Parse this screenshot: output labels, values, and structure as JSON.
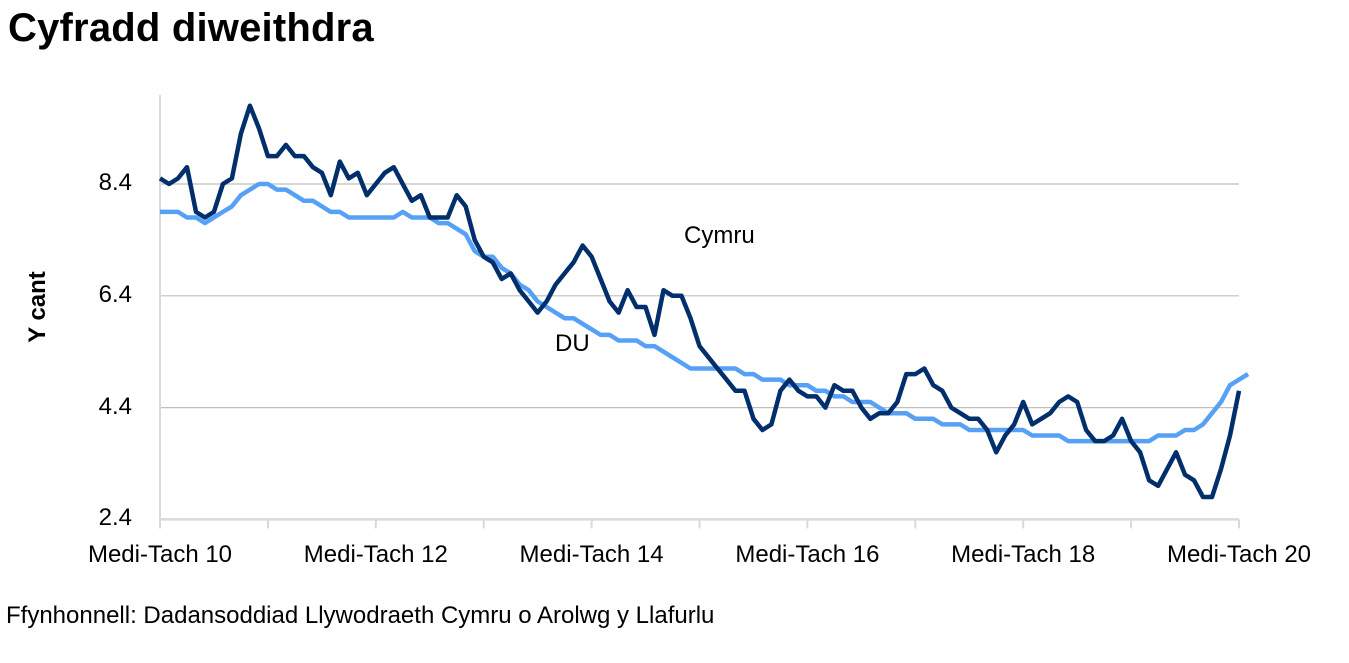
{
  "title": "Cyfradd diweithdra",
  "source": "Ffynhonnell: Dadansoddiad Llywodraeth Cymru o Arolwg y Llafurlu",
  "colors": {
    "cymru": "#002F6C",
    "du": "#56A0F5",
    "grid": "#BFBFBF",
    "axis": "#D9D9D9"
  },
  "chart_data": {
    "type": "line",
    "title": "Cyfradd diweithdra",
    "xlabel": "",
    "ylabel": "Y cant",
    "ylim": [
      2.4,
      10.0
    ],
    "yticks": [
      "2.4",
      "4.4",
      "6.4",
      "8.4"
    ],
    "ytick_values": [
      2.4,
      4.4,
      6.4,
      8.4
    ],
    "xtick_labels": [
      "Medi-Tach 10",
      "Medi-Tach 12",
      "Medi-Tach 14",
      "Medi-Tach 16",
      "Medi-Tach 18",
      "Medi-Tach 20"
    ],
    "grid": true,
    "legend_position": "inline-annotations",
    "annotations": [
      {
        "text": "Cymru",
        "series": "Cymru"
      },
      {
        "text": "DU",
        "series": "DU"
      }
    ],
    "x_count": 121,
    "series": [
      {
        "name": "Cymru",
        "values": [
          8.5,
          8.4,
          8.5,
          8.7,
          7.9,
          7.8,
          7.9,
          8.4,
          8.5,
          9.3,
          9.8,
          9.4,
          8.9,
          8.9,
          9.1,
          8.9,
          8.9,
          8.7,
          8.6,
          8.2,
          8.8,
          8.5,
          8.6,
          8.2,
          8.4,
          8.6,
          8.7,
          8.4,
          8.1,
          8.2,
          7.8,
          7.8,
          7.8,
          8.2,
          8.0,
          7.4,
          7.1,
          7.0,
          6.7,
          6.8,
          6.5,
          6.3,
          6.1,
          6.3,
          6.6,
          6.8,
          7.0,
          7.3,
          7.1,
          6.7,
          6.3,
          6.1,
          6.5,
          6.2,
          6.2,
          5.7,
          6.5,
          6.4,
          6.4,
          6.0,
          5.5,
          5.3,
          5.1,
          4.9,
          4.7,
          4.7,
          4.2,
          4.0,
          4.1,
          4.7,
          4.9,
          4.7,
          4.6,
          4.6,
          4.4,
          4.8,
          4.7,
          4.7,
          4.4,
          4.2,
          4.3,
          4.3,
          4.5,
          5.0,
          5.0,
          5.1,
          4.8,
          4.7,
          4.4,
          4.3,
          4.2,
          4.2,
          4.0,
          3.6,
          3.9,
          4.1,
          4.5,
          4.1,
          4.2,
          4.3,
          4.5,
          4.6,
          4.5,
          4.0,
          3.8,
          3.8,
          3.9,
          4.2,
          3.8,
          3.6,
          3.1,
          3.0,
          3.3,
          3.6,
          3.2,
          3.1,
          2.8,
          2.8,
          3.3,
          3.9,
          4.7
        ]
      },
      {
        "name": "DU",
        "values": [
          7.9,
          7.9,
          7.9,
          7.8,
          7.8,
          7.7,
          7.8,
          7.9,
          8.0,
          8.2,
          8.3,
          8.4,
          8.4,
          8.3,
          8.3,
          8.2,
          8.1,
          8.1,
          8.0,
          7.9,
          7.9,
          7.8,
          7.8,
          7.8,
          7.8,
          7.8,
          7.8,
          7.9,
          7.8,
          7.8,
          7.8,
          7.7,
          7.7,
          7.6,
          7.5,
          7.2,
          7.1,
          7.1,
          6.9,
          6.8,
          6.6,
          6.5,
          6.3,
          6.2,
          6.1,
          6.0,
          6.0,
          5.9,
          5.8,
          5.7,
          5.7,
          5.6,
          5.6,
          5.6,
          5.5,
          5.5,
          5.4,
          5.3,
          5.2,
          5.1,
          5.1,
          5.1,
          5.1,
          5.1,
          5.1,
          5.0,
          5.0,
          4.9,
          4.9,
          4.9,
          4.8,
          4.8,
          4.8,
          4.7,
          4.7,
          4.6,
          4.6,
          4.5,
          4.5,
          4.5,
          4.4,
          4.3,
          4.3,
          4.3,
          4.2,
          4.2,
          4.2,
          4.1,
          4.1,
          4.1,
          4.0,
          4.0,
          4.0,
          4.0,
          4.0,
          4.0,
          4.0,
          3.9,
          3.9,
          3.9,
          3.9,
          3.8,
          3.8,
          3.8,
          3.8,
          3.8,
          3.8,
          3.8,
          3.8,
          3.8,
          3.8,
          3.9,
          3.9,
          3.9,
          4.0,
          4.0,
          4.1,
          4.3,
          4.5,
          4.8,
          4.9,
          5.0
        ]
      }
    ]
  }
}
